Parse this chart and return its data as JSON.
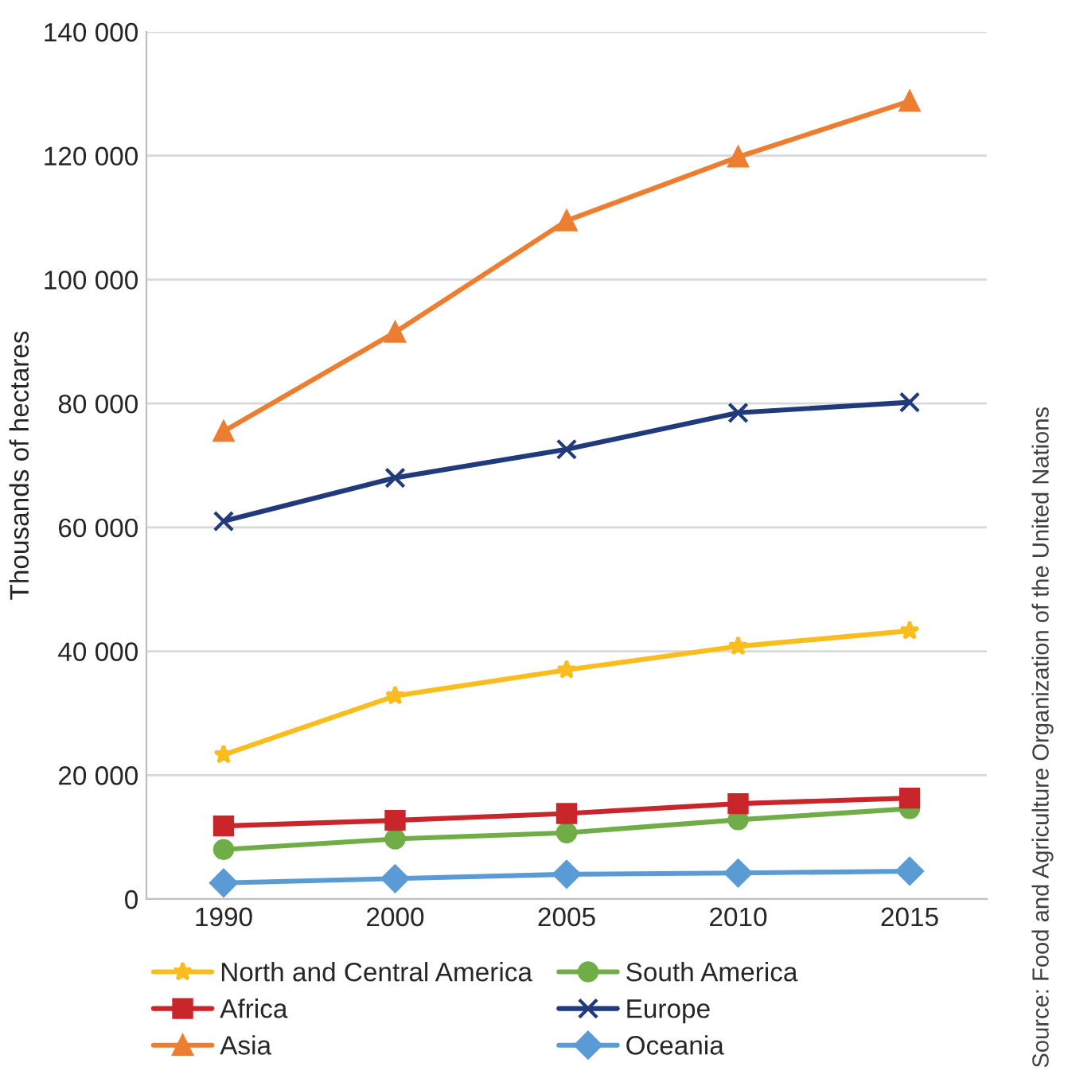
{
  "chart_data": {
    "type": "line",
    "ylabel": "Thousands of hectares",
    "categories": [
      "1990",
      "2000",
      "2005",
      "2010",
      "2015"
    ],
    "series": [
      {
        "name": "North and Central America",
        "color": "#fbbd1e",
        "marker": "star",
        "values": [
          23300,
          32800,
          37000,
          40800,
          43300
        ]
      },
      {
        "name": "South America",
        "color": "#70ad47",
        "marker": "circle",
        "values": [
          8000,
          9700,
          10700,
          12800,
          14600
        ]
      },
      {
        "name": "Africa",
        "color": "#c8262b",
        "marker": "square",
        "values": [
          11800,
          12700,
          13800,
          15400,
          16300
        ]
      },
      {
        "name": "Europe",
        "color": "#203a7c",
        "marker": "cross",
        "values": [
          61000,
          68000,
          72600,
          78500,
          80200
        ]
      },
      {
        "name": "Asia",
        "color": "#ed7d31",
        "marker": "triangle",
        "values": [
          75500,
          91500,
          109500,
          119800,
          128800
        ]
      },
      {
        "name": "Oceania",
        "color": "#5b9bd5",
        "marker": "diamond",
        "values": [
          2600,
          3300,
          4000,
          4200,
          4500
        ]
      }
    ],
    "ylim": [
      0,
      140000
    ],
    "yticks": [
      {
        "value": 0,
        "label": "0"
      },
      {
        "value": 20000,
        "label": "20 000"
      },
      {
        "value": 40000,
        "label": "40 000"
      },
      {
        "value": 60000,
        "label": "60 000"
      },
      {
        "value": 80000,
        "label": "80 000"
      },
      {
        "value": 100000,
        "label": "100 000"
      },
      {
        "value": 120000,
        "label": "120 000"
      },
      {
        "value": 140000,
        "label": "140 000"
      }
    ],
    "grid": "y",
    "legend": "bottom",
    "line_style": "solid",
    "annotations": [
      "Source: Food and Agriculture Organization of the United Nations"
    ]
  }
}
